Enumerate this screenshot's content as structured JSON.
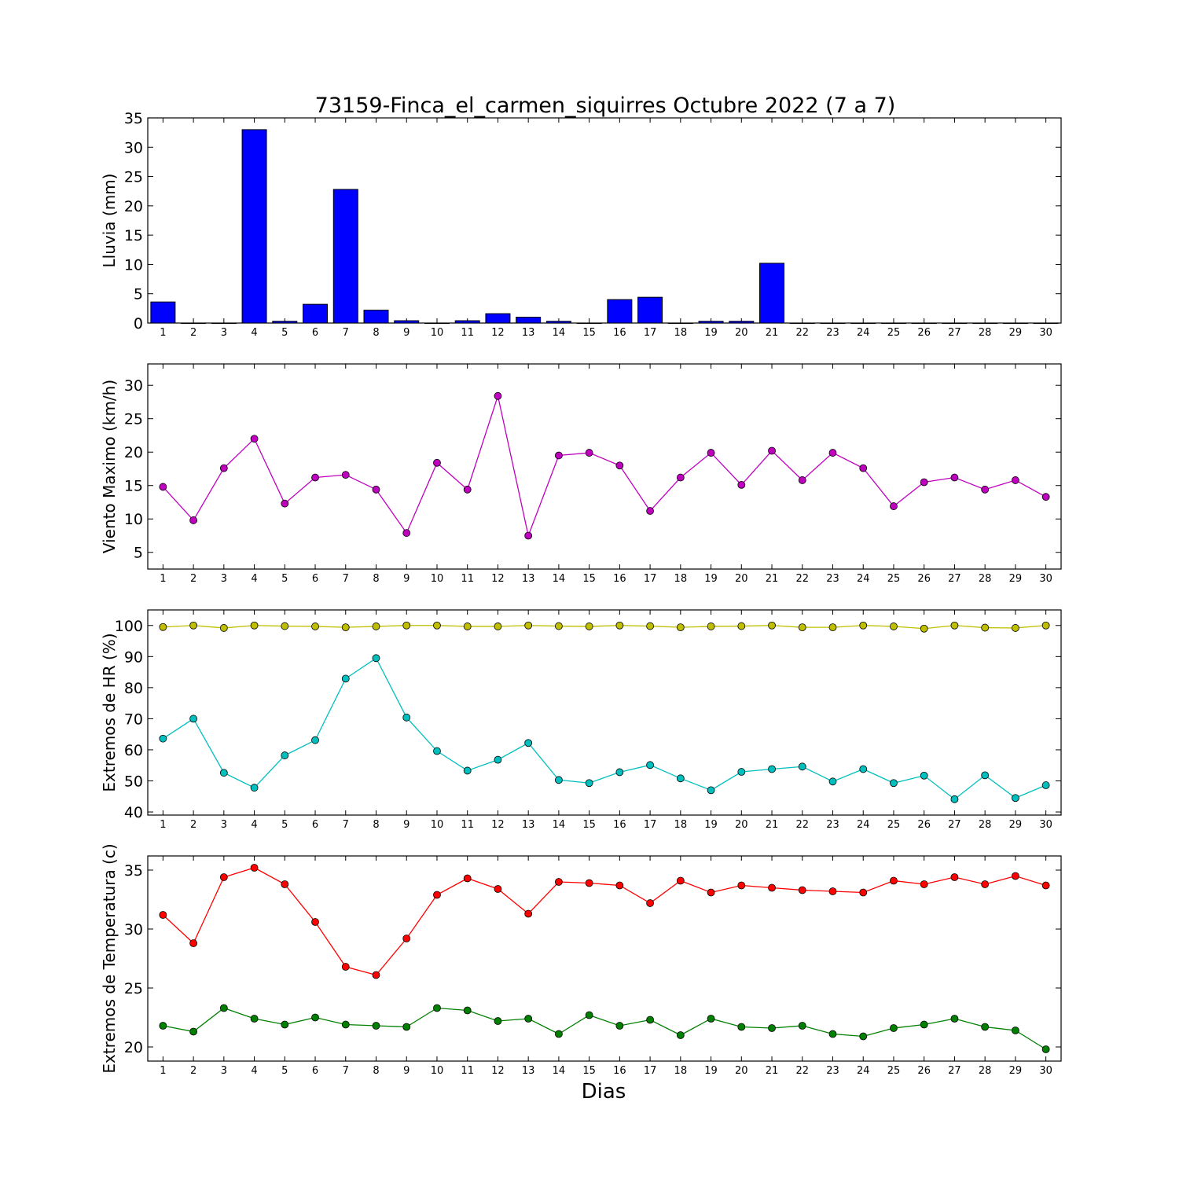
{
  "chart_data": {
    "title": "73159-Finca_el_carmen_siquirres Octubre 2022  (7 a 7)",
    "xlabel": "Dias",
    "days": [
      1,
      2,
      3,
      4,
      5,
      6,
      7,
      8,
      9,
      10,
      11,
      12,
      13,
      14,
      15,
      16,
      17,
      18,
      19,
      20,
      21,
      22,
      23,
      24,
      25,
      26,
      27,
      28,
      29,
      30
    ],
    "xlim": [
      0.5,
      30.5
    ],
    "panels": [
      {
        "type": "bar",
        "ylabel": "Lluvia (mm)",
        "ylim": [
          0,
          35
        ],
        "yticks": [
          0,
          5,
          10,
          15,
          20,
          25,
          30,
          35
        ],
        "series": [
          {
            "color": "#0000ff",
            "values": [
              3.6,
              0,
              0,
              33.0,
              0.3,
              3.2,
              22.8,
              2.2,
              0.4,
              0,
              0.4,
              1.6,
              1.0,
              0.3,
              0,
              4.0,
              4.4,
              0,
              0.3,
              0.3,
              10.2,
              0,
              0,
              0,
              0,
              0,
              0,
              0,
              0,
              0
            ]
          }
        ]
      },
      {
        "type": "line",
        "ylabel": "Viento Maximo (km/h)",
        "ylim": [
          2.5,
          33.2
        ],
        "yticks": [
          5,
          10,
          15,
          20,
          25,
          30
        ],
        "series": [
          {
            "color": "#bf00bf",
            "values": [
              14.8,
              9.8,
              17.6,
              22.0,
              12.3,
              16.2,
              16.6,
              14.4,
              7.9,
              18.4,
              14.4,
              28.4,
              7.5,
              19.5,
              19.9,
              18.0,
              11.2,
              16.2,
              19.9,
              15.1,
              20.2,
              15.8,
              19.9,
              17.6,
              11.9,
              15.5,
              16.2,
              14.4,
              15.8,
              13.3
            ]
          }
        ]
      },
      {
        "type": "line",
        "ylabel": "Extremos de HR (%)",
        "ylim": [
          39,
          105
        ],
        "yticks": [
          40,
          50,
          60,
          70,
          80,
          90,
          100
        ],
        "series": [
          {
            "color": "#bfbf00",
            "values": [
              99.5,
              100,
              99.2,
              100,
              99.8,
              99.7,
              99.4,
              99.7,
              100,
              100,
              99.7,
              99.7,
              100,
              99.8,
              99.7,
              100,
              99.8,
              99.4,
              99.7,
              99.8,
              100,
              99.4,
              99.4,
              100,
              99.7,
              99.0,
              100,
              99.3,
              99.2,
              100
            ]
          },
          {
            "color": "#00bfbf",
            "values": [
              63.6,
              70.0,
              52.6,
              47.8,
              58.2,
              63.1,
              82.9,
              89.5,
              70.4,
              59.6,
              53.3,
              56.8,
              62.2,
              50.3,
              49.3,
              52.8,
              55.1,
              50.8,
              47.0,
              52.9,
              53.8,
              54.6,
              49.8,
              53.8,
              49.3,
              51.7,
              44.1,
              51.8,
              44.5,
              48.6
            ]
          }
        ]
      },
      {
        "type": "line",
        "ylabel": "Extremos de Temperatura (c)",
        "ylim": [
          18.8,
          36.2
        ],
        "yticks": [
          20,
          25,
          30,
          35
        ],
        "series": [
          {
            "color": "#ff0000",
            "values": [
              31.2,
              28.8,
              34.4,
              35.2,
              33.8,
              30.6,
              26.8,
              26.1,
              29.2,
              32.9,
              34.3,
              33.4,
              31.3,
              34.0,
              33.9,
              33.7,
              32.2,
              34.1,
              33.1,
              33.7,
              33.5,
              33.3,
              33.2,
              33.1,
              34.1,
              33.8,
              34.4,
              33.8,
              34.5,
              33.7
            ]
          },
          {
            "color": "#008000",
            "values": [
              21.8,
              21.3,
              23.3,
              22.4,
              21.9,
              22.5,
              21.9,
              21.8,
              21.7,
              23.3,
              23.1,
              22.2,
              22.4,
              21.1,
              22.7,
              21.8,
              22.3,
              21.0,
              22.4,
              21.7,
              21.6,
              21.8,
              21.1,
              20.9,
              21.6,
              21.9,
              22.4,
              21.7,
              21.4,
              19.8
            ]
          }
        ]
      }
    ]
  }
}
